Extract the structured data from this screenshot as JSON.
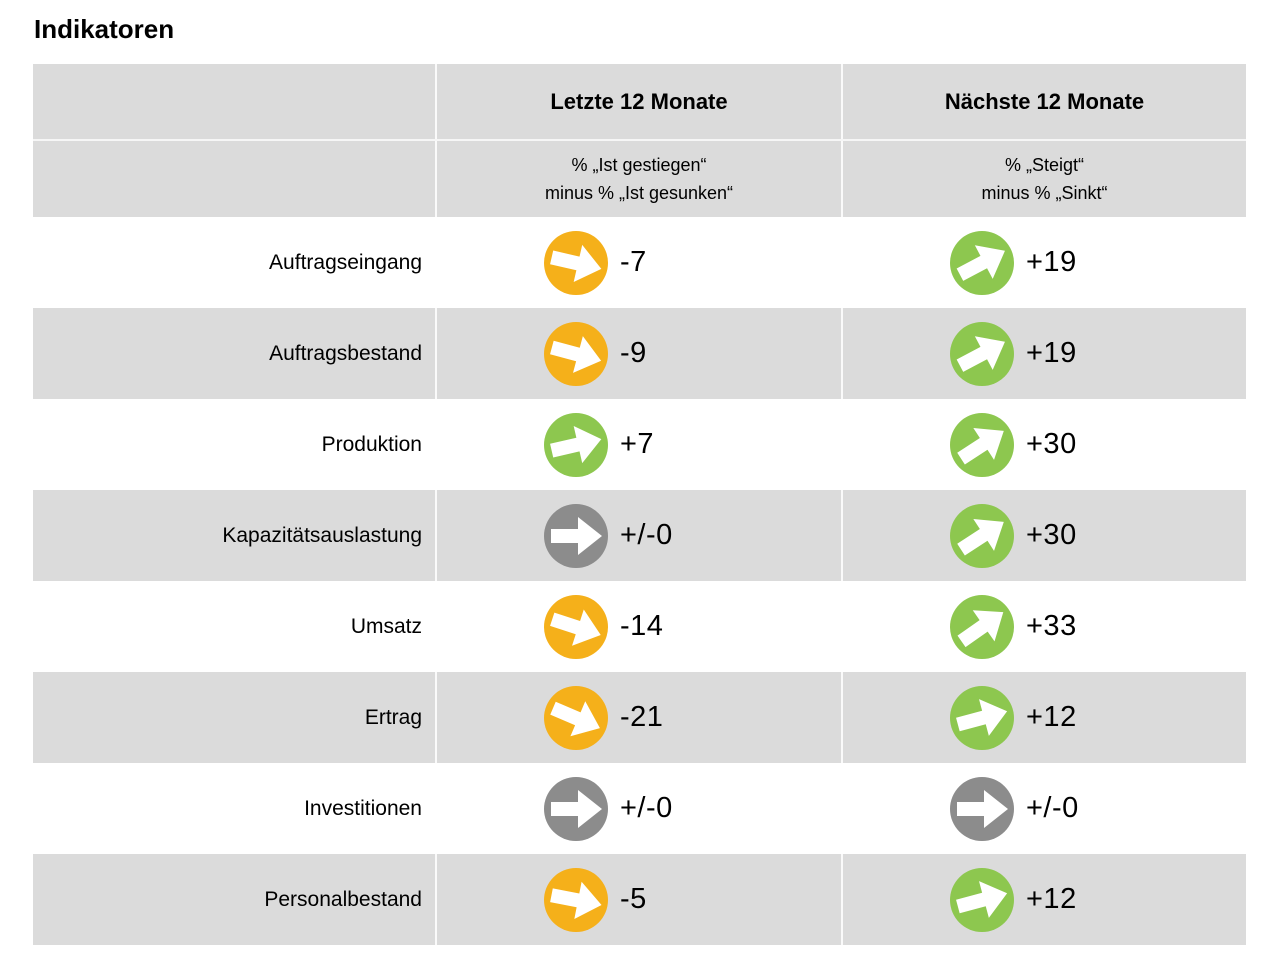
{
  "title": "Indikatoren",
  "table": {
    "columns": [
      {
        "label": "Letzte 12 Monate",
        "sublines": [
          "% „Ist gestiegen“",
          "minus % „Ist gesunken“"
        ]
      },
      {
        "label": "Nächste 12 Monate",
        "sublines": [
          "% „Steigt“",
          "minus % „Sinkt“"
        ]
      }
    ],
    "rows": [
      {
        "label": "Auftragseingang",
        "last12": {
          "value": "-7",
          "trend": "down",
          "tilt": -13
        },
        "next12": {
          "value": "+19",
          "trend": "up",
          "tilt": 28
        }
      },
      {
        "label": "Auftragsbestand",
        "last12": {
          "value": "-9",
          "trend": "down",
          "tilt": -15
        },
        "next12": {
          "value": "+19",
          "trend": "up",
          "tilt": 28
        }
      },
      {
        "label": "Produktion",
        "last12": {
          "value": "+7",
          "trend": "up",
          "tilt": 13
        },
        "next12": {
          "value": "+30",
          "trend": "up",
          "tilt": 33
        }
      },
      {
        "label": "Kapazitätsauslastung",
        "last12": {
          "value": "+/-0",
          "trend": "flat",
          "tilt": 0
        },
        "next12": {
          "value": "+30",
          "trend": "up",
          "tilt": 33
        }
      },
      {
        "label": "Umsatz",
        "last12": {
          "value": "-14",
          "trend": "down",
          "tilt": -18
        },
        "next12": {
          "value": "+33",
          "trend": "up",
          "tilt": 35
        }
      },
      {
        "label": "Ertrag",
        "last12": {
          "value": "-21",
          "trend": "down",
          "tilt": -23
        },
        "next12": {
          "value": "+12",
          "trend": "up",
          "tilt": 15
        }
      },
      {
        "label": "Investitionen",
        "last12": {
          "value": "+/-0",
          "trend": "flat",
          "tilt": 0
        },
        "next12": {
          "value": "+/-0",
          "trend": "flat",
          "tilt": 0
        }
      },
      {
        "label": "Personalbestand",
        "last12": {
          "value": "-5",
          "trend": "down",
          "tilt": -11
        },
        "next12": {
          "value": "+12",
          "trend": "up",
          "tilt": 15
        }
      }
    ]
  },
  "colors": {
    "up": "#8DC74F",
    "down": "#F5B01A",
    "flat": "#8C8C8C",
    "band_bg": "#DBDBDB",
    "text": "#000000"
  },
  "chart_data": {
    "type": "table",
    "title": "Indikatoren",
    "categories": [
      "Auftragseingang",
      "Auftragsbestand",
      "Produktion",
      "Kapazitätsauslastung",
      "Umsatz",
      "Ertrag",
      "Investitionen",
      "Personalbestand"
    ],
    "series": [
      {
        "name": "Letzte 12 Monate (% „Ist gestiegen“ minus % „Ist gesunken“)",
        "values": [
          -7,
          -9,
          7,
          0,
          -14,
          -21,
          0,
          -5
        ]
      },
      {
        "name": "Nächste 12 Monate (% „Steigt“ minus % „Sinkt“)",
        "values": [
          19,
          19,
          30,
          30,
          33,
          12,
          0,
          12
        ]
      }
    ],
    "legend_position": "none",
    "grid": false
  }
}
